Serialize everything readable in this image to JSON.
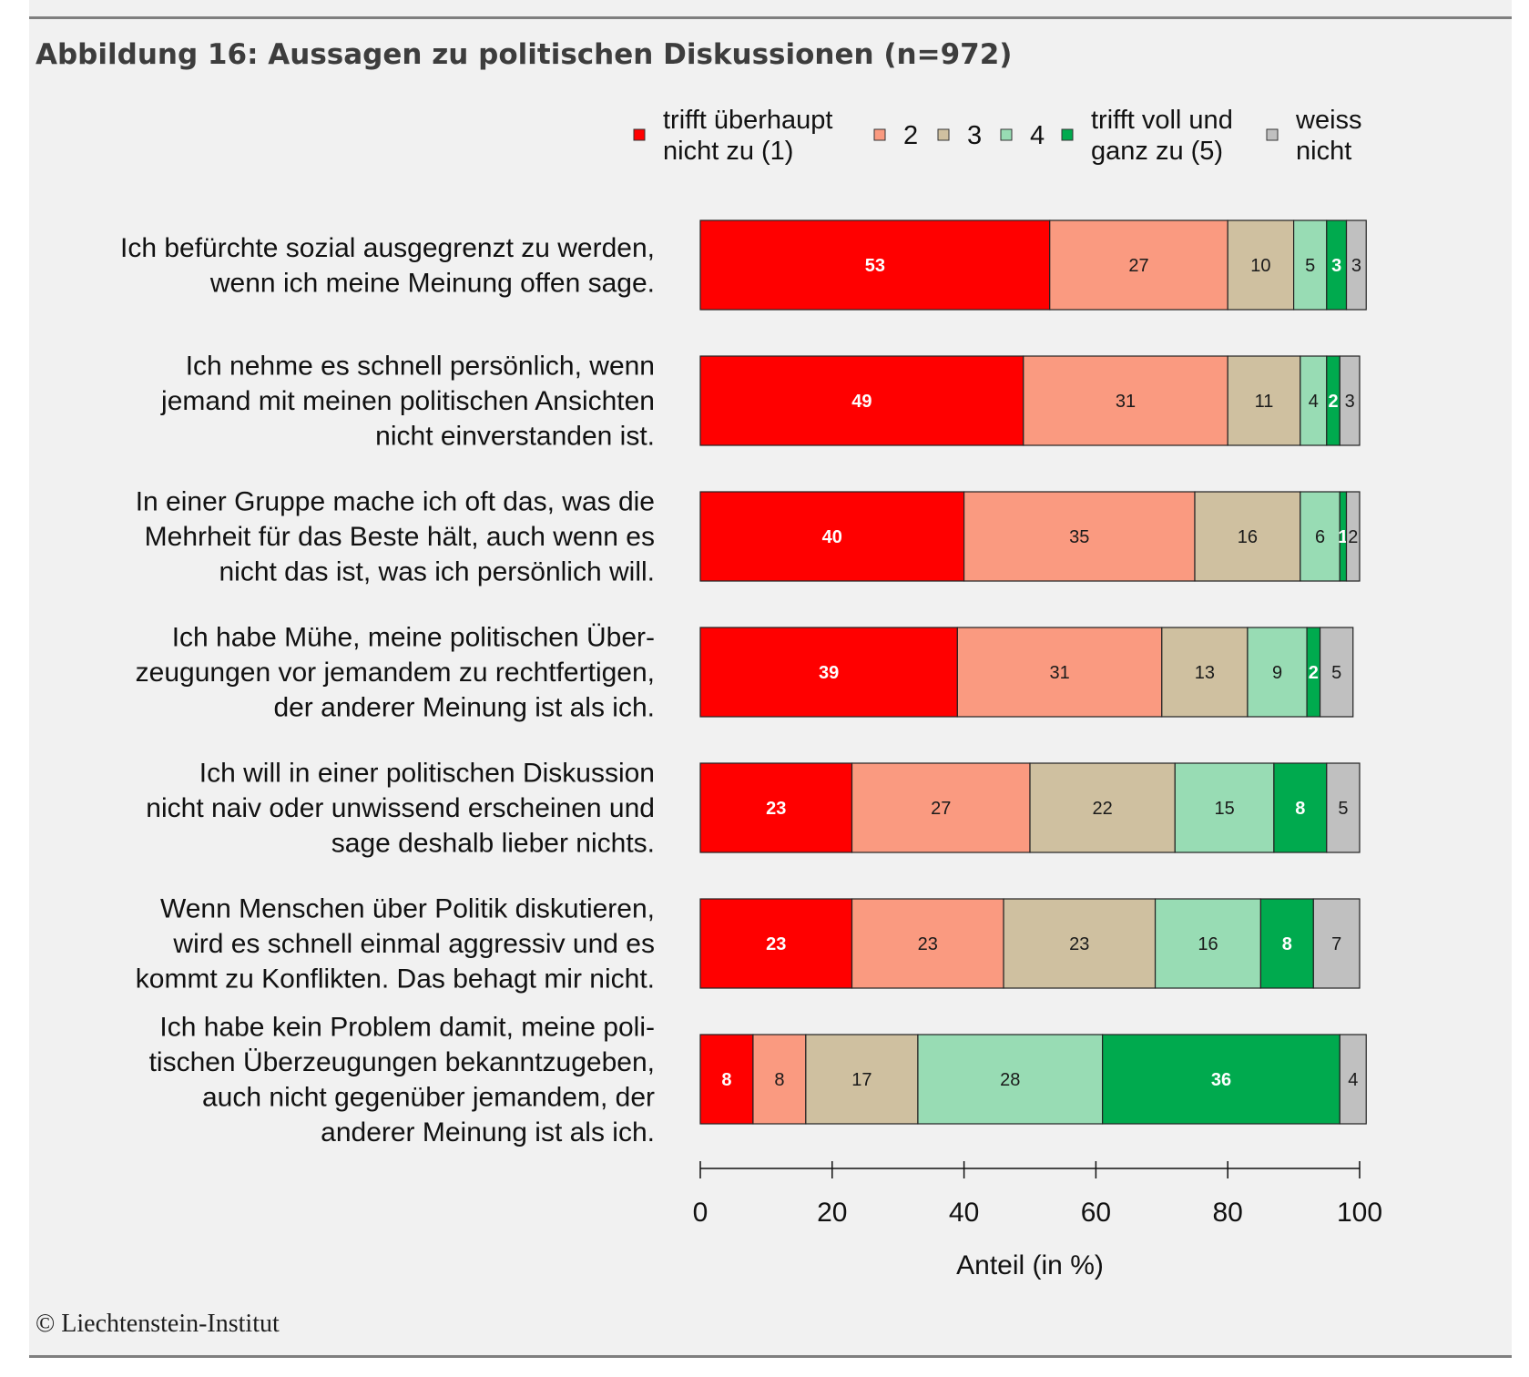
{
  "figure": {
    "title": "Abbildung 16: Aussagen zu politischen Diskussionen (n=972)",
    "copyright": "© Liechtenstein-Institut"
  },
  "chart_data": {
    "type": "bar",
    "orientation": "horizontal",
    "stacked": true,
    "title": "Abbildung 16: Aussagen zu politischen Diskussionen (n=972)",
    "xlabel": "Anteil (in %)",
    "ylabel": "",
    "xlim": [
      0,
      100
    ],
    "xticks": [
      0,
      20,
      40,
      60,
      80,
      100
    ],
    "grid": false,
    "legend_position": "top",
    "categories": [
      [
        "Ich befürchte sozial ausgegrenzt zu werden,",
        "wenn ich meine Meinung offen sage."
      ],
      [
        "Ich nehme es schnell persönlich, wenn",
        "jemand mit meinen politischen Ansichten",
        "nicht einverstanden ist."
      ],
      [
        "In einer Gruppe mache ich oft das, was die",
        "Mehrheit für das Beste hält, auch wenn es",
        "nicht das ist, was ich persönlich will."
      ],
      [
        "Ich habe Mühe, meine politischen Über-",
        "zeugungen vor jemandem zu rechtfertigen,",
        "der anderer Meinung ist als ich."
      ],
      [
        "Ich will in einer politischen Diskussion",
        "nicht naiv oder unwissend erscheinen und",
        "sage deshalb lieber nichts."
      ],
      [
        "Wenn Menschen über Politik diskutieren,",
        "wird es schnell einmal aggressiv und es",
        "kommt zu Konflikten. Das behagt mir nicht."
      ],
      [
        "Ich habe kein Problem damit, meine poli-",
        "tischen Überzeugungen bekanntzugeben,",
        "auch nicht gegenüber jemandem, der",
        "anderer Meinung ist als ich."
      ]
    ],
    "series": [
      {
        "name": [
          "trifft überhaupt",
          "nicht zu (1)"
        ],
        "color": "#ff0000",
        "label_color": "#ffffff",
        "values": [
          53,
          49,
          40,
          39,
          23,
          23,
          8
        ]
      },
      {
        "name": [
          "2"
        ],
        "color": "#fa9a80",
        "label_color": "#1a1a1a",
        "values": [
          27,
          31,
          35,
          31,
          27,
          23,
          8
        ]
      },
      {
        "name": [
          "3"
        ],
        "color": "#cfc0a0",
        "label_color": "#1a1a1a",
        "values": [
          10,
          11,
          16,
          13,
          22,
          23,
          17
        ]
      },
      {
        "name": [
          "4"
        ],
        "color": "#98dcb4",
        "label_color": "#1a1a1a",
        "values": [
          5,
          4,
          6,
          9,
          15,
          16,
          28
        ]
      },
      {
        "name": [
          "trifft voll und",
          "ganz zu (5)"
        ],
        "color": "#00aa4e",
        "label_color": "#ffffff",
        "values": [
          3,
          2,
          1,
          2,
          8,
          8,
          36
        ]
      },
      {
        "name": [
          "weiss",
          "nicht"
        ],
        "color": "#c0c0c0",
        "label_color": "#1a1a1a",
        "values": [
          3,
          3,
          2,
          5,
          5,
          7,
          4
        ]
      }
    ]
  }
}
